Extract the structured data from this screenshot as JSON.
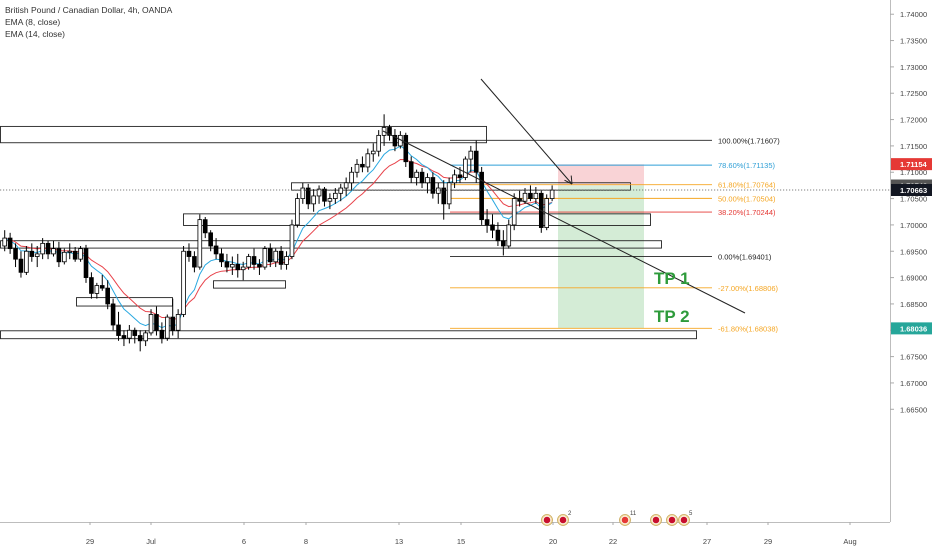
{
  "header": {
    "title": "British Pound / Canadian Dollar, 4h, OANDA",
    "indicators": [
      "EMA (8, close)",
      "EMA (14, close)"
    ]
  },
  "chart_data": {
    "type": "candlestick",
    "symbol": "GBPCAD",
    "interval": "4h",
    "broker": "OANDA",
    "ylim": [
      1.6436,
      1.7427
    ],
    "y_ticks": [
      "1.74000",
      "1.73500",
      "1.73000",
      "1.72500",
      "1.72000",
      "1.71500",
      "1.71000",
      "1.70500",
      "1.70000",
      "1.69500",
      "1.69000",
      "1.68500",
      "1.68000",
      "1.67500",
      "1.67000",
      "1.66500"
    ],
    "x_ticks": [
      "29",
      "Jul",
      "6",
      "8",
      "13",
      "15",
      "20",
      "22",
      "27",
      "29",
      "Aug"
    ],
    "candles": [
      [
        1.696,
        1.699,
        1.695,
        1.6975
      ],
      [
        1.6975,
        1.6985,
        1.6945,
        1.6955
      ],
      [
        1.6955,
        1.6965,
        1.692,
        1.6935
      ],
      [
        1.6935,
        1.695,
        1.69,
        1.691
      ],
      [
        1.691,
        1.696,
        1.6905,
        1.695
      ],
      [
        1.695,
        1.6965,
        1.693,
        1.694
      ],
      [
        1.694,
        1.696,
        1.692,
        1.6945
      ],
      [
        1.6945,
        1.6975,
        1.6935,
        1.6965
      ],
      [
        1.6965,
        1.697,
        1.6935,
        1.6945
      ],
      [
        1.6945,
        1.697,
        1.694,
        1.6955
      ],
      [
        1.6955,
        1.6968,
        1.692,
        1.693
      ],
      [
        1.693,
        1.6955,
        1.6925,
        1.6948
      ],
      [
        1.6948,
        1.6965,
        1.6935,
        1.695
      ],
      [
        1.695,
        1.6958,
        1.693,
        1.6935
      ],
      [
        1.6935,
        1.696,
        1.693,
        1.6955
      ],
      [
        1.6955,
        1.6962,
        1.689,
        1.69
      ],
      [
        1.69,
        1.691,
        1.686,
        1.687
      ],
      [
        1.687,
        1.689,
        1.686,
        1.6885
      ],
      [
        1.6885,
        1.6905,
        1.6875,
        1.688
      ],
      [
        1.688,
        1.6895,
        1.684,
        1.685
      ],
      [
        1.685,
        1.686,
        1.68,
        1.681
      ],
      [
        1.681,
        1.6835,
        1.678,
        1.679
      ],
      [
        1.679,
        1.68,
        1.677,
        1.6785
      ],
      [
        1.6785,
        1.681,
        1.6775,
        1.68
      ],
      [
        1.68,
        1.6805,
        1.6775,
        1.679
      ],
      [
        1.679,
        1.68,
        1.676,
        1.678
      ],
      [
        1.678,
        1.68,
        1.677,
        1.6795
      ],
      [
        1.6795,
        1.684,
        1.679,
        1.683
      ],
      [
        1.683,
        1.6845,
        1.679,
        1.68
      ],
      [
        1.68,
        1.6815,
        1.6775,
        1.6785
      ],
      [
        1.6785,
        1.683,
        1.678,
        1.6825
      ],
      [
        1.6825,
        1.686,
        1.679,
        1.68
      ],
      [
        1.68,
        1.684,
        1.6785,
        1.683
      ],
      [
        1.683,
        1.696,
        1.6825,
        1.695
      ],
      [
        1.695,
        1.6965,
        1.693,
        1.694
      ],
      [
        1.694,
        1.695,
        1.691,
        1.692
      ],
      [
        1.692,
        1.702,
        1.6915,
        1.701
      ],
      [
        1.701,
        1.7015,
        1.6975,
        1.6985
      ],
      [
        1.6985,
        1.699,
        1.695,
        1.696
      ],
      [
        1.696,
        1.6975,
        1.6935,
        1.6945
      ],
      [
        1.6945,
        1.6955,
        1.692,
        1.693
      ],
      [
        1.693,
        1.6945,
        1.691,
        1.692
      ],
      [
        1.692,
        1.694,
        1.6905,
        1.6925
      ],
      [
        1.6925,
        1.6945,
        1.69,
        1.6915
      ],
      [
        1.6915,
        1.693,
        1.6895,
        1.692
      ],
      [
        1.692,
        1.6945,
        1.6915,
        1.694
      ],
      [
        1.694,
        1.6955,
        1.6915,
        1.6925
      ],
      [
        1.6925,
        1.6935,
        1.6905,
        1.692
      ],
      [
        1.692,
        1.696,
        1.6915,
        1.6955
      ],
      [
        1.6955,
        1.6965,
        1.692,
        1.693
      ],
      [
        1.693,
        1.6955,
        1.692,
        1.695
      ],
      [
        1.695,
        1.696,
        1.6915,
        1.6925
      ],
      [
        1.6925,
        1.695,
        1.6915,
        1.694
      ],
      [
        1.694,
        1.701,
        1.6935,
        1.7
      ],
      [
        1.7,
        1.706,
        1.6995,
        1.705
      ],
      [
        1.705,
        1.708,
        1.704,
        1.707
      ],
      [
        1.707,
        1.7078,
        1.703,
        1.704
      ],
      [
        1.704,
        1.7068,
        1.7025,
        1.7055
      ],
      [
        1.7055,
        1.7075,
        1.704,
        1.7068
      ],
      [
        1.7068,
        1.7072,
        1.7035,
        1.7045
      ],
      [
        1.7045,
        1.706,
        1.703,
        1.705
      ],
      [
        1.705,
        1.707,
        1.704,
        1.706
      ],
      [
        1.706,
        1.7078,
        1.7045,
        1.707
      ],
      [
        1.707,
        1.709,
        1.7055,
        1.708
      ],
      [
        1.708,
        1.711,
        1.7065,
        1.71
      ],
      [
        1.71,
        1.7125,
        1.709,
        1.7115
      ],
      [
        1.7115,
        1.713,
        1.71,
        1.711
      ],
      [
        1.711,
        1.7145,
        1.71,
        1.7135
      ],
      [
        1.7135,
        1.7155,
        1.712,
        1.714
      ],
      [
        1.714,
        1.718,
        1.713,
        1.717
      ],
      [
        1.717,
        1.721,
        1.715,
        1.7185
      ],
      [
        1.7185,
        1.719,
        1.716,
        1.717
      ],
      [
        1.717,
        1.7182,
        1.714,
        1.715
      ],
      [
        1.715,
        1.7178,
        1.7145,
        1.717
      ],
      [
        1.717,
        1.7175,
        1.711,
        1.712
      ],
      [
        1.712,
        1.713,
        1.708,
        1.709
      ],
      [
        1.709,
        1.7105,
        1.7075,
        1.71
      ],
      [
        1.71,
        1.7108,
        1.707,
        1.708
      ],
      [
        1.708,
        1.7098,
        1.706,
        1.709
      ],
      [
        1.709,
        1.71,
        1.705,
        1.706
      ],
      [
        1.706,
        1.708,
        1.704,
        1.707
      ],
      [
        1.707,
        1.7085,
        1.701,
        1.704
      ],
      [
        1.704,
        1.709,
        1.703,
        1.708
      ],
      [
        1.708,
        1.7105,
        1.707,
        1.7095
      ],
      [
        1.7095,
        1.711,
        1.708,
        1.709
      ],
      [
        1.709,
        1.713,
        1.7085,
        1.7125
      ],
      [
        1.7125,
        1.715,
        1.71,
        1.714
      ],
      [
        1.714,
        1.716,
        1.708,
        1.71
      ],
      [
        1.71,
        1.711,
        1.7,
        1.701
      ],
      [
        1.701,
        1.703,
        1.6985,
        1.7
      ],
      [
        1.7,
        1.702,
        1.6975,
        1.699
      ],
      [
        1.699,
        1.7005,
        1.696,
        1.697
      ],
      [
        1.697,
        1.699,
        1.6942,
        1.696
      ],
      [
        1.696,
        1.701,
        1.6955,
        1.7
      ],
      [
        1.7,
        1.706,
        1.699,
        1.705
      ],
      [
        1.705,
        1.7065,
        1.7035,
        1.7045
      ],
      [
        1.7045,
        1.707,
        1.704,
        1.706
      ],
      [
        1.706,
        1.7075,
        1.7045,
        1.705
      ],
      [
        1.705,
        1.7072,
        1.704,
        1.706
      ],
      [
        1.706,
        1.7065,
        1.6985,
        1.6995
      ],
      [
        1.6995,
        1.7058,
        1.699,
        1.705
      ],
      [
        1.705,
        1.7075,
        1.7045,
        1.7066
      ]
    ],
    "fibonacci": [
      {
        "label": "100.00%(1.71607)",
        "value": 1.71607,
        "color": "#222222"
      },
      {
        "label": "78.60%(1.71135)",
        "value": 1.71135,
        "color": "#2f9fd6"
      },
      {
        "label": "61.80%(1.70764)",
        "value": 1.70764,
        "color": "#f5a623"
      },
      {
        "label": "50.00%(1.70504)",
        "value": 1.70504,
        "color": "#f5a623"
      },
      {
        "label": "38.20%(1.70244)",
        "value": 1.70244,
        "color": "#e53935"
      },
      {
        "label": "0.00%(1.69401)",
        "value": 1.69401,
        "color": "#222222"
      },
      {
        "label": "-27.00%(1.68806)",
        "value": 1.68806,
        "color": "#f5a623"
      },
      {
        "label": "-61.80%(1.68038)",
        "value": 1.68038,
        "color": "#f5a623"
      }
    ],
    "zones": [
      {
        "top": 1.7187,
        "bottom": 1.7156
      },
      {
        "top": 1.708,
        "bottom": 1.7066
      },
      {
        "top": 1.7021,
        "bottom": 1.6999
      },
      {
        "top": 1.697,
        "bottom": 1.6956
      },
      {
        "top": 1.6894,
        "bottom": 1.688
      },
      {
        "top": 1.6862,
        "bottom": 1.6846
      },
      {
        "top": 1.6799,
        "bottom": 1.6784
      }
    ],
    "position": {
      "stop": 1.7115,
      "entry": 1.7075,
      "target": 1.6804
    },
    "targets": [
      {
        "label": "TP 1",
        "value": 1.688
      },
      {
        "label": "TP 2",
        "value": 1.6804
      }
    ],
    "price_labels": [
      {
        "value": "1.71154",
        "color": "#e53935"
      },
      {
        "value": "1.70748",
        "color": "#555555"
      },
      {
        "value": "1.70663",
        "color": "#131722"
      },
      {
        "value": "1.68036",
        "color": "#26a69a"
      }
    ],
    "events": [
      {
        "label": "2",
        "kind": "flag"
      },
      {
        "label": "11",
        "kind": "flag"
      },
      {
        "label": "5",
        "kind": "flag"
      }
    ],
    "colors": {
      "candle": "#000000",
      "ema_fast": "#29a8e0",
      "ema_slow": "#e8434b",
      "long_zone": "#d4ecd6",
      "stop_zone": "#f9d3d6"
    }
  }
}
